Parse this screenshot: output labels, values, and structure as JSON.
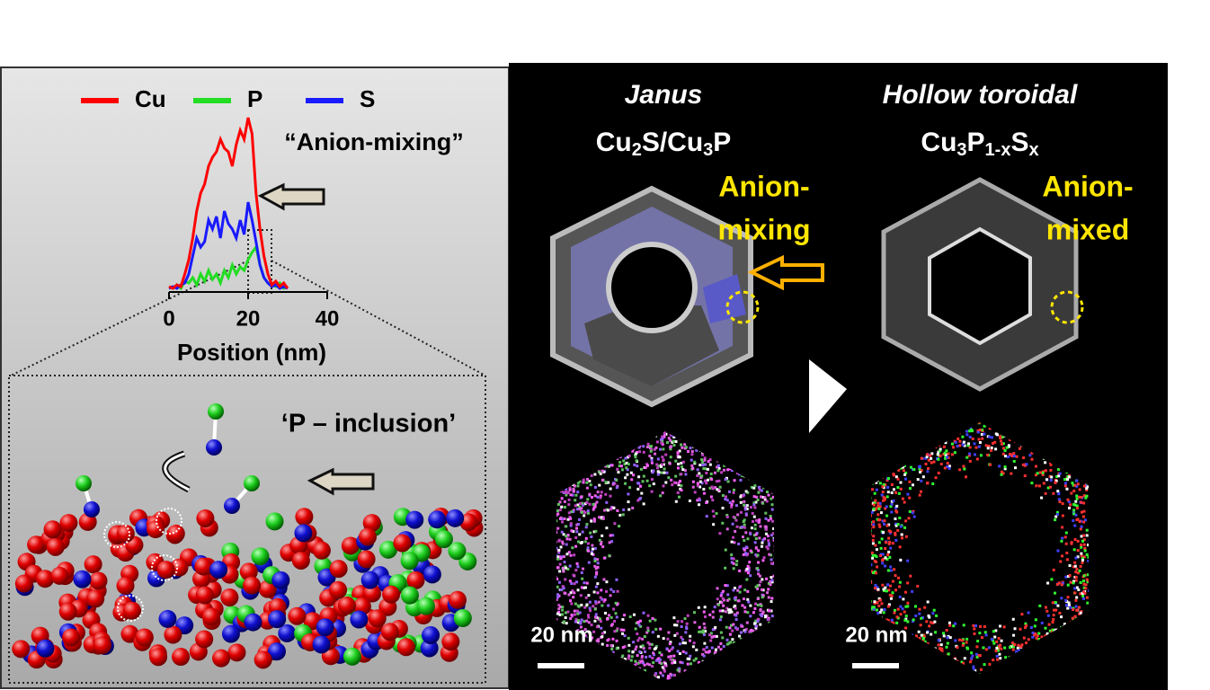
{
  "left_panel": {
    "chart_data": {
      "type": "line",
      "x_label": "Position (nm)",
      "annotation": "“Anion-mixing”",
      "x": [
        0,
        1,
        2,
        3,
        4,
        5,
        6,
        7,
        8,
        9,
        10,
        11,
        12,
        13,
        14,
        15,
        16,
        17,
        18,
        19,
        20,
        21,
        22,
        23,
        24,
        25,
        26,
        27,
        28,
        29,
        30
      ],
      "xlim": [
        0,
        40
      ],
      "xticks": [
        0,
        20,
        40
      ],
      "ylim": [
        0,
        100
      ],
      "series": [
        {
          "name": "Cu",
          "color": "#ff0000",
          "values": [
            3,
            2,
            4,
            3,
            10,
            18,
            30,
            45,
            55,
            60,
            70,
            75,
            78,
            85,
            80,
            78,
            70,
            82,
            90,
            85,
            97,
            88,
            55,
            35,
            20,
            10,
            4,
            6,
            3,
            5,
            2
          ]
        },
        {
          "name": "P",
          "color": "#22dd22",
          "values": [
            3,
            2,
            4,
            2,
            6,
            5,
            8,
            4,
            10,
            6,
            12,
            7,
            10,
            5,
            12,
            8,
            15,
            10,
            14,
            12,
            18,
            22,
            25,
            15,
            8,
            5,
            4,
            3,
            5,
            2,
            3
          ]
        },
        {
          "name": "S",
          "color": "#1a1aff",
          "values": [
            2,
            3,
            2,
            4,
            5,
            10,
            20,
            30,
            25,
            28,
            40,
            35,
            42,
            30,
            45,
            38,
            35,
            30,
            40,
            32,
            50,
            40,
            28,
            15,
            8,
            5,
            3,
            4,
            2,
            3,
            2
          ]
        }
      ]
    },
    "inclusion_label": "‘P – inclusion’"
  },
  "right_panel": {
    "columns": [
      {
        "title": "Janus",
        "formula": [
          "Cu",
          "2",
          "S/Cu",
          "3",
          "P"
        ],
        "note": [
          "Anion-",
          "mixing"
        ],
        "scale_bar": "20 nm"
      },
      {
        "title": "Hollow toroidal",
        "formula": [
          "Cu",
          "3",
          "P",
          "1-x",
          "S",
          "x"
        ],
        "note": [
          "Anion-",
          "mixed"
        ],
        "scale_bar": "20 nm"
      }
    ]
  }
}
